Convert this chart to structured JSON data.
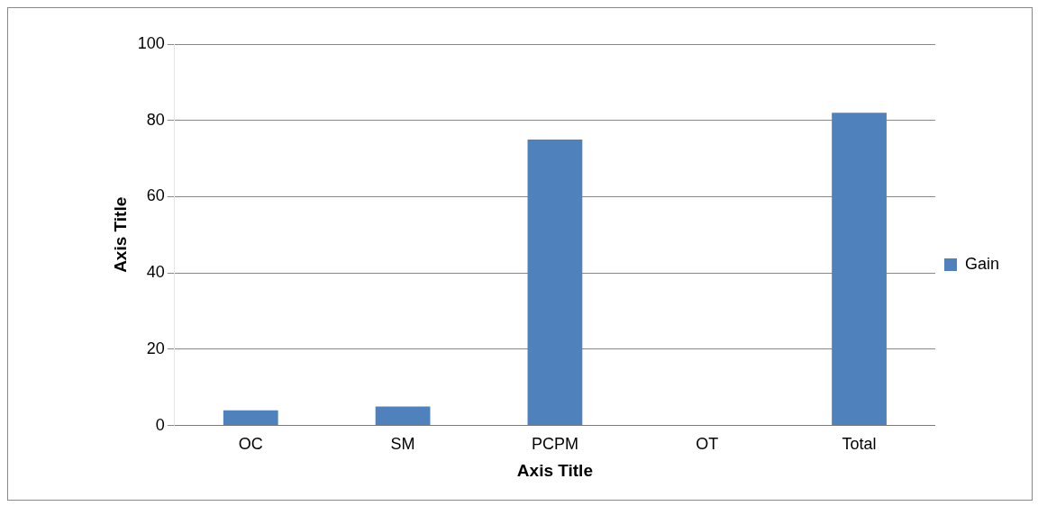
{
  "chart_data": {
    "type": "bar",
    "xlabel": "Axis Title",
    "ylabel": "Axis Title",
    "categories": [
      "OC",
      "SM",
      "PCPM",
      "OT",
      "Total"
    ],
    "series": [
      {
        "name": "Gain",
        "color": "#4f81bd",
        "values": [
          4,
          5,
          75,
          0,
          82
        ]
      }
    ],
    "ylim": [
      0,
      100
    ],
    "yticks": [
      0,
      20,
      40,
      60,
      80,
      100
    ],
    "grid": "y",
    "legend": "right"
  }
}
